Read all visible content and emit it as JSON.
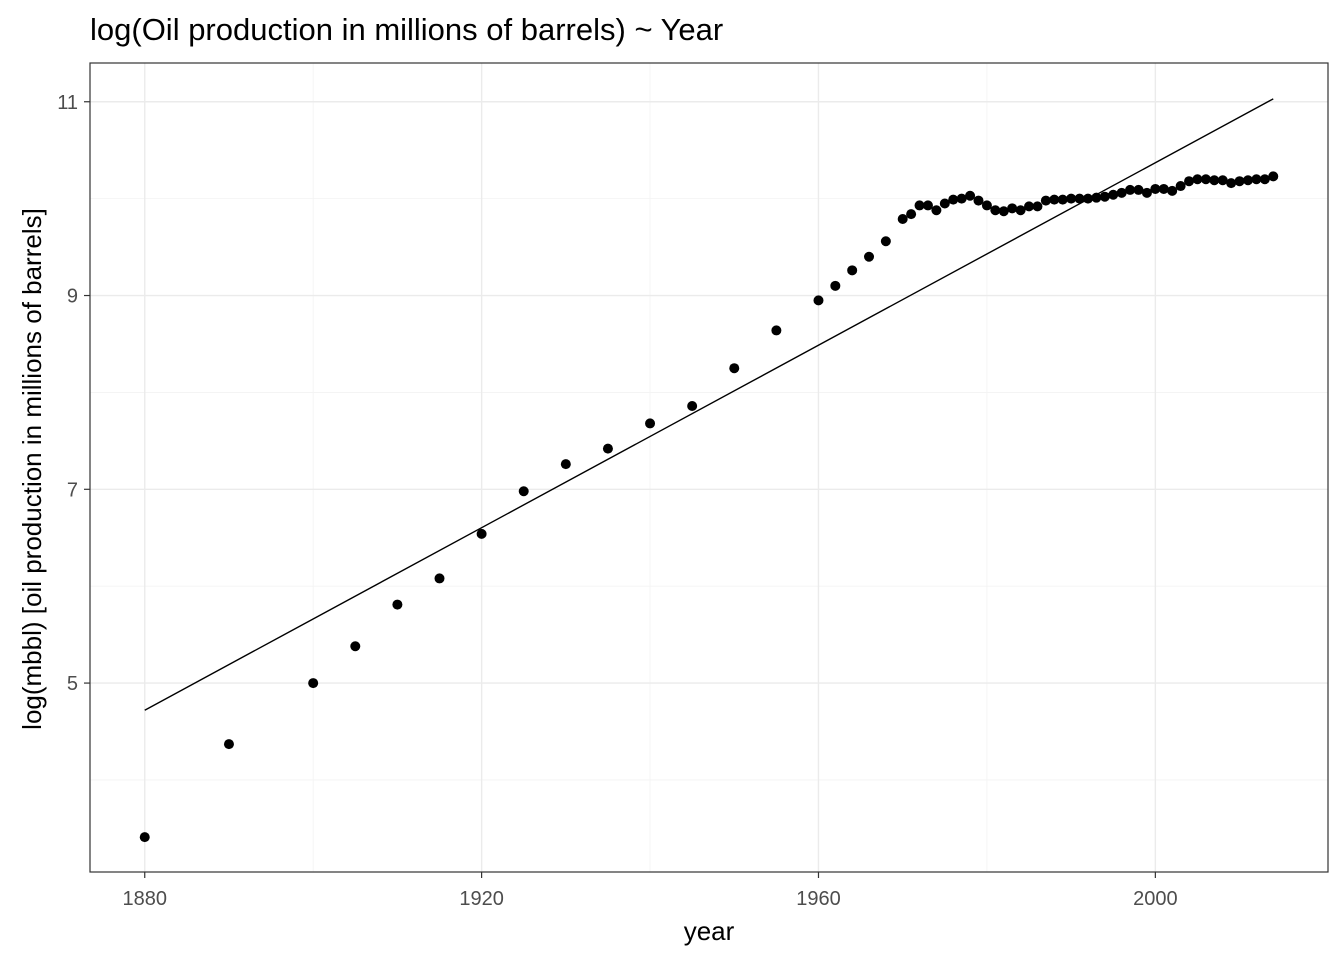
{
  "chart_data": {
    "type": "scatter",
    "title": "log(Oil production in millions of barrels) ~ Year",
    "xlabel": "year",
    "ylabel": "log(mbbl) [oil production in millions of barrels]",
    "xlim": [
      1873.5,
      2020.5
    ],
    "ylim": [
      3.05,
      11.4
    ],
    "x_ticks": [
      1880,
      1920,
      1960,
      2000
    ],
    "x_minor_ticks": [
      1900,
      1940,
      1980
    ],
    "y_ticks": [
      5,
      7,
      9,
      11
    ],
    "y_minor_ticks": [
      4,
      6,
      8,
      10
    ],
    "grid": true,
    "legend": "none",
    "series": [
      {
        "type": "scatter",
        "x": [
          1880,
          1890,
          1900,
          1905,
          1910,
          1915,
          1920,
          1925,
          1930,
          1935,
          1940,
          1945,
          1950,
          1955,
          1960,
          1962,
          1964,
          1966,
          1968,
          1970,
          1971,
          1972,
          1973,
          1974,
          1975,
          1976,
          1977,
          1978,
          1979,
          1980,
          1981,
          1982,
          1983,
          1984,
          1985,
          1986,
          1987,
          1988,
          1989,
          1990,
          1991,
          1992,
          1993,
          1994,
          1995,
          1996,
          1997,
          1998,
          1999,
          2000,
          2001,
          2002,
          2003,
          2004,
          2005,
          2006,
          2007,
          2008,
          2009,
          2010,
          2011,
          2012,
          2013,
          2014
        ],
        "y": [
          3.41,
          4.37,
          5.0,
          5.38,
          5.81,
          6.08,
          6.54,
          6.98,
          7.26,
          7.42,
          7.68,
          7.86,
          8.25,
          8.64,
          8.95,
          9.1,
          9.26,
          9.4,
          9.56,
          9.79,
          9.84,
          9.93,
          9.93,
          9.88,
          9.95,
          9.99,
          10.0,
          10.03,
          9.98,
          9.93,
          9.88,
          9.87,
          9.9,
          9.88,
          9.92,
          9.92,
          9.98,
          9.99,
          9.99,
          10.0,
          10.0,
          10.0,
          10.01,
          10.02,
          10.04,
          10.06,
          10.09,
          10.09,
          10.06,
          10.1,
          10.1,
          10.08,
          10.13,
          10.18,
          10.2,
          10.2,
          10.19,
          10.19,
          10.16,
          10.18,
          10.19,
          10.2,
          10.2,
          10.23
        ]
      },
      {
        "type": "line",
        "x": [
          1880,
          2014
        ],
        "y": [
          4.72,
          11.03
        ]
      }
    ]
  }
}
